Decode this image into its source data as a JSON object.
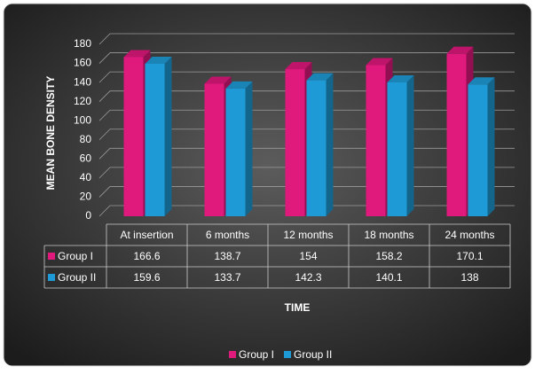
{
  "chart_data": {
    "type": "bar3d",
    "y_label": "MEAN BONE DENSITY",
    "x_label": "TIME",
    "categories": [
      "At insertion",
      "6 months",
      "12 months",
      "18 months",
      "24 months"
    ],
    "series": [
      {
        "name": "Group I",
        "color": "#e0197d",
        "values": [
          166.6,
          138.7,
          154,
          158.2,
          170.1
        ]
      },
      {
        "name": "Group II",
        "color": "#1e9bd7",
        "values": [
          159.6,
          133.7,
          142.3,
          140.1,
          138
        ]
      }
    ],
    "ylim": [
      0,
      180
    ],
    "yticks": [
      0,
      20,
      40,
      60,
      80,
      100,
      120,
      140,
      160,
      180
    ],
    "grid": true,
    "legend": "bottom"
  }
}
